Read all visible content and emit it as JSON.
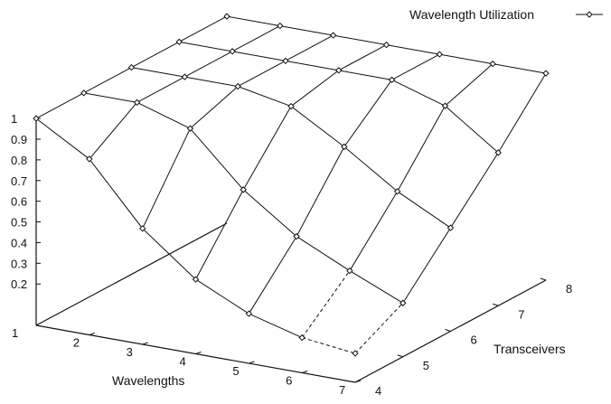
{
  "chart_data": {
    "type": "surface3d",
    "title": "",
    "legend": {
      "placement": "top-right",
      "entries": [
        "Wavelength Utilization"
      ]
    },
    "x": {
      "label": "Wavelengths",
      "values": [
        1,
        2,
        3,
        4,
        5,
        6,
        7
      ],
      "ticks": [
        "1",
        "2",
        "3",
        "4",
        "5",
        "6",
        "7"
      ]
    },
    "y": {
      "label": "Transceivers",
      "values": [
        4,
        5,
        6,
        7,
        8
      ],
      "ticks": [
        "4",
        "5",
        "6",
        "7",
        "8"
      ]
    },
    "z": {
      "label": "",
      "range": [
        0.1,
        1.0
      ],
      "ticks": [
        "0.2",
        "0.3",
        "0.4",
        "0.5",
        "0.6",
        "0.7",
        "0.8",
        "0.9",
        "1"
      ]
    },
    "series": [
      {
        "name": "Wavelength Utilization",
        "note_rows_are_transceivers": [
          4,
          5,
          6,
          7,
          8
        ],
        "z": [
          [
            1.0,
            0.85,
            0.56,
            0.36,
            0.24,
            0.17,
            0.14
          ],
          [
            1.0,
            1.0,
            0.92,
            0.67,
            0.49,
            0.37,
            0.26
          ],
          [
            1.0,
            1.0,
            1.0,
            0.95,
            0.8,
            0.63,
            0.5
          ],
          [
            1.0,
            1.0,
            1.0,
            1.0,
            1.0,
            0.92,
            0.74
          ],
          [
            1.0,
            1.0,
            1.0,
            1.0,
            1.0,
            1.0,
            1.0
          ]
        ],
        "dashed_segments": [
          [
            6,
            0,
            7,
            0
          ],
          [
            7,
            0,
            7,
            1
          ],
          [
            6,
            0,
            6,
            1
          ]
        ]
      }
    ]
  }
}
